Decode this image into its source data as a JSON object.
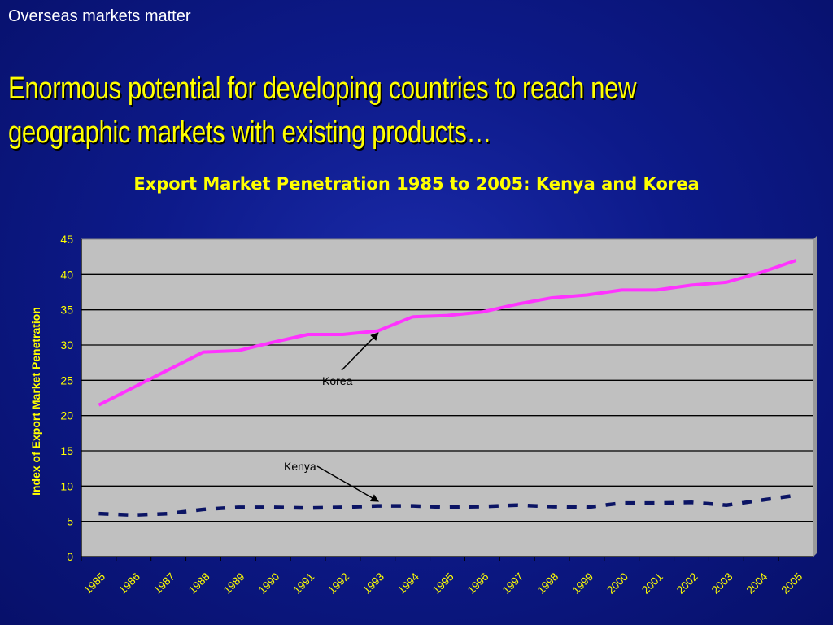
{
  "slide": {
    "kicker": "Overseas markets matter",
    "headline": "Enormous potential for developing countries to reach new geographic markets with existing products…"
  },
  "chart_data": {
    "type": "line",
    "title": "Export Market Penetration 1985 to 2005: Kenya and Korea",
    "ylabel": "Index of Export Market Penetration",
    "xlabel": "",
    "ylim": [
      0,
      45
    ],
    "yticks": [
      "0",
      "5",
      "10",
      "15",
      "20",
      "25",
      "30",
      "35",
      "40",
      "45"
    ],
    "grid": true,
    "x": [
      "1985",
      "1986",
      "1987",
      "1988",
      "1989",
      "1990",
      "1991",
      "1992",
      "1993",
      "1994",
      "1995",
      "1996",
      "1997",
      "1998",
      "1999",
      "2000",
      "2001",
      "2002",
      "2003",
      "2004",
      "2005"
    ],
    "series": [
      {
        "name": "Korea",
        "style": "solid",
        "color": "#ff33ff",
        "values": [
          21.5,
          24,
          26.5,
          29,
          29.2,
          30.4,
          31.5,
          31.5,
          32,
          34,
          34.2,
          34.7,
          35.8,
          36.7,
          37.1,
          37.8,
          37.8,
          38.5,
          38.9,
          40.3,
          42
        ]
      },
      {
        "name": "Kenya",
        "style": "dashed",
        "color": "#0b1464",
        "values": [
          6.1,
          5.9,
          6.1,
          6.7,
          7,
          7,
          6.9,
          7,
          7.2,
          7.2,
          7,
          7.1,
          7.3,
          7.1,
          7,
          7.6,
          7.6,
          7.7,
          7.3,
          8,
          8.7
        ]
      }
    ],
    "annotations": [
      {
        "text": "Korea",
        "series": "Korea",
        "points_to": "1993"
      },
      {
        "text": "Kenya",
        "series": "Kenya",
        "points_to": "1993"
      }
    ],
    "colors": {
      "plot_bg": "#c0c0c0",
      "grid": "#000000",
      "axis_text": "#ffff00",
      "annotation_text": "#000000"
    }
  }
}
